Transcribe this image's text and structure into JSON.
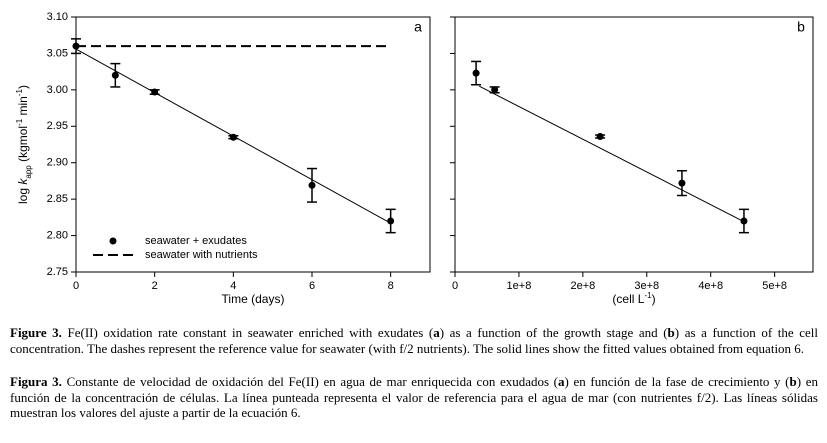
{
  "chart_data": [
    {
      "type": "scatter",
      "panel_label": "a",
      "xlabel": "Time (days)",
      "ylabel": [
        "log ",
        "k",
        "app",
        " (kgmol",
        "-1",
        " min",
        "-1",
        ")"
      ],
      "xlim": [
        0,
        9
      ],
      "xticks": [
        0,
        2,
        4,
        6,
        8
      ],
      "ylim": [
        2.75,
        3.1
      ],
      "yticks": [
        {
          "value": 2.75,
          "label": "2.75"
        },
        {
          "value": 2.8,
          "label": "2.80"
        },
        {
          "value": 2.85,
          "label": "2.85"
        },
        {
          "value": 2.9,
          "label": "2.90"
        },
        {
          "value": 2.95,
          "label": "2.95"
        },
        {
          "value": 3.0,
          "label": "3.00"
        },
        {
          "value": 3.05,
          "label": "3.05"
        },
        {
          "value": 3.1,
          "label": "3.10"
        }
      ],
      "legend": "lower left",
      "series": [
        {
          "name": "seawater + exudates",
          "style": "marker",
          "color": "#000000",
          "x": [
            0,
            1,
            2,
            4,
            6,
            8
          ],
          "values": [
            3.06,
            3.02,
            2.997,
            2.935,
            2.869,
            2.82
          ],
          "errors": [
            0.01,
            0.016,
            0.003,
            0.002,
            0.023,
            0.016
          ]
        },
        {
          "name": "seawater with nutrients",
          "style": "dashed",
          "color": "#000000",
          "x": [
            0,
            8
          ],
          "values": [
            3.06,
            3.06
          ]
        }
      ],
      "fit": {
        "x": [
          0,
          8
        ],
        "values": [
          3.056,
          2.817
        ]
      }
    },
    {
      "type": "scatter",
      "panel_label": "b",
      "xlabel": [
        "(cell L",
        "-1",
        ")"
      ],
      "xlim": [
        0,
        560000000
      ],
      "xticks": [
        0,
        {
          "value": 100000000,
          "label": "1e+8"
        },
        {
          "value": 200000000,
          "label": "2e+8"
        },
        {
          "value": 300000000,
          "label": "3e+8"
        },
        {
          "value": 400000000,
          "label": "4e+8"
        },
        {
          "value": 500000000,
          "label": "5e+8"
        }
      ],
      "ylim": [
        2.75,
        3.1
      ],
      "yticks": [
        2.75,
        2.8,
        2.85,
        2.9,
        2.95,
        3.0,
        3.05,
        3.1
      ],
      "ytick_labels": false,
      "series": [
        {
          "style": "marker",
          "color": "#000000",
          "x": [
            33000000,
            62000000,
            227000000,
            355000000,
            452000000
          ],
          "values": [
            3.023,
            3.0,
            2.936,
            2.872,
            2.82
          ],
          "errors": [
            0.016,
            0.004,
            0.002,
            0.017,
            0.016
          ]
        }
      ],
      "fit": {
        "x": [
          38000000,
          452000000
        ],
        "values": [
          3.005,
          2.819
        ]
      }
    }
  ],
  "caption_en": [
    "Figure 3.",
    " Fe(II) oxidation rate constant in seawater enriched with exudates (",
    "a",
    ") as a function of the growth stage and (",
    "b",
    ") as a function of the cell concentration. The dashes represent the reference value for seawater (with f/2 nutrients). The solid lines show the fitted values obtained from equation 6."
  ],
  "caption_es": [
    "Figura 3.",
    " Constante de velocidad de oxidación del Fe(II) en agua de mar enriquecida con exudados (",
    "a",
    ") en función de la fase de crecimiento y (",
    "b",
    ") en función de la concentración de células. La línea punteada representa el valor de referencia para el agua de mar (con nutrientes f/2). Las líneas sólidas muestran los valores del ajuste a partir de la ecuación 6."
  ]
}
